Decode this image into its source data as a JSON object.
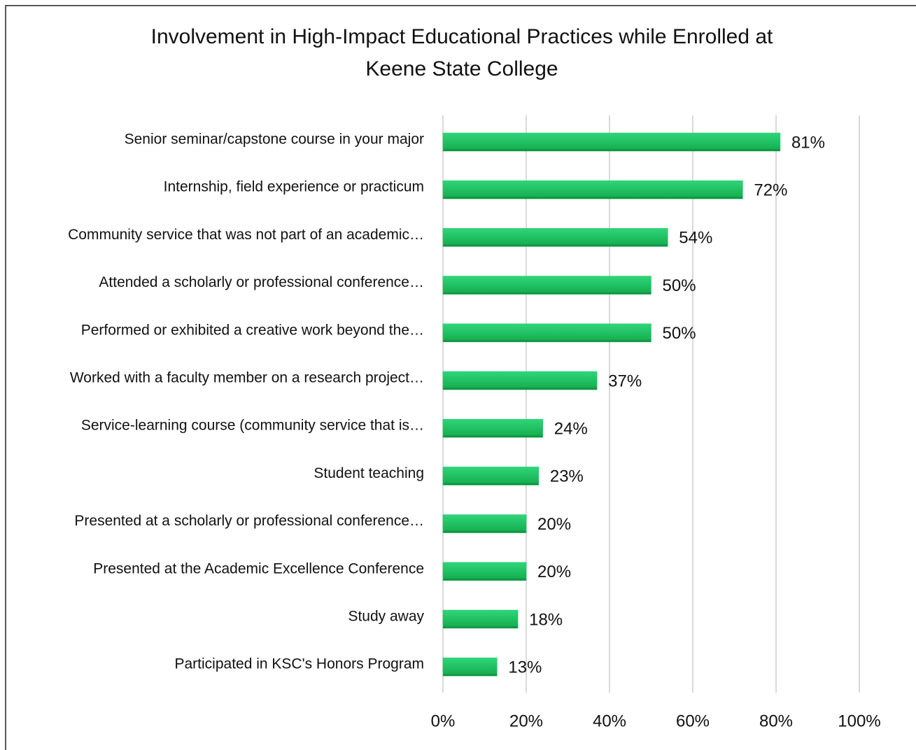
{
  "chart_data": {
    "type": "bar",
    "orientation": "horizontal",
    "title": [
      "Involvement in High-Impact Educational Practices while Enrolled at",
      "Keene State College"
    ],
    "categories": [
      "Senior seminar/capstone course in your major",
      "Internship, field experience or practicum",
      "Community service that was not part of an academic…",
      "Attended a scholarly or professional conference…",
      "Performed or exhibited a creative work beyond the…",
      "Worked with a faculty member on a research project…",
      "Service-learning course (community service that is…",
      "Student teaching",
      "Presented at a scholarly or professional conference…",
      "Presented at the Academic Excellence Conference",
      "Study away",
      "Participated in KSC's Honors Program"
    ],
    "values": [
      81,
      72,
      54,
      50,
      50,
      37,
      24,
      23,
      20,
      20,
      18,
      13
    ],
    "value_labels": [
      "81%",
      "72%",
      "54%",
      "50%",
      "50%",
      "37%",
      "24%",
      "23%",
      "20%",
      "20%",
      "18%",
      "13%"
    ],
    "color": "#1ec862",
    "xlim": [
      0,
      100
    ],
    "xticks": [
      {
        "value": 0,
        "label": "0%"
      },
      {
        "value": 20,
        "label": "20%"
      },
      {
        "value": 40,
        "label": "40%"
      },
      {
        "value": 60,
        "label": "60%"
      },
      {
        "value": 80,
        "label": "80%"
      },
      {
        "value": 100,
        "label": "100%"
      }
    ],
    "grid": true
  }
}
